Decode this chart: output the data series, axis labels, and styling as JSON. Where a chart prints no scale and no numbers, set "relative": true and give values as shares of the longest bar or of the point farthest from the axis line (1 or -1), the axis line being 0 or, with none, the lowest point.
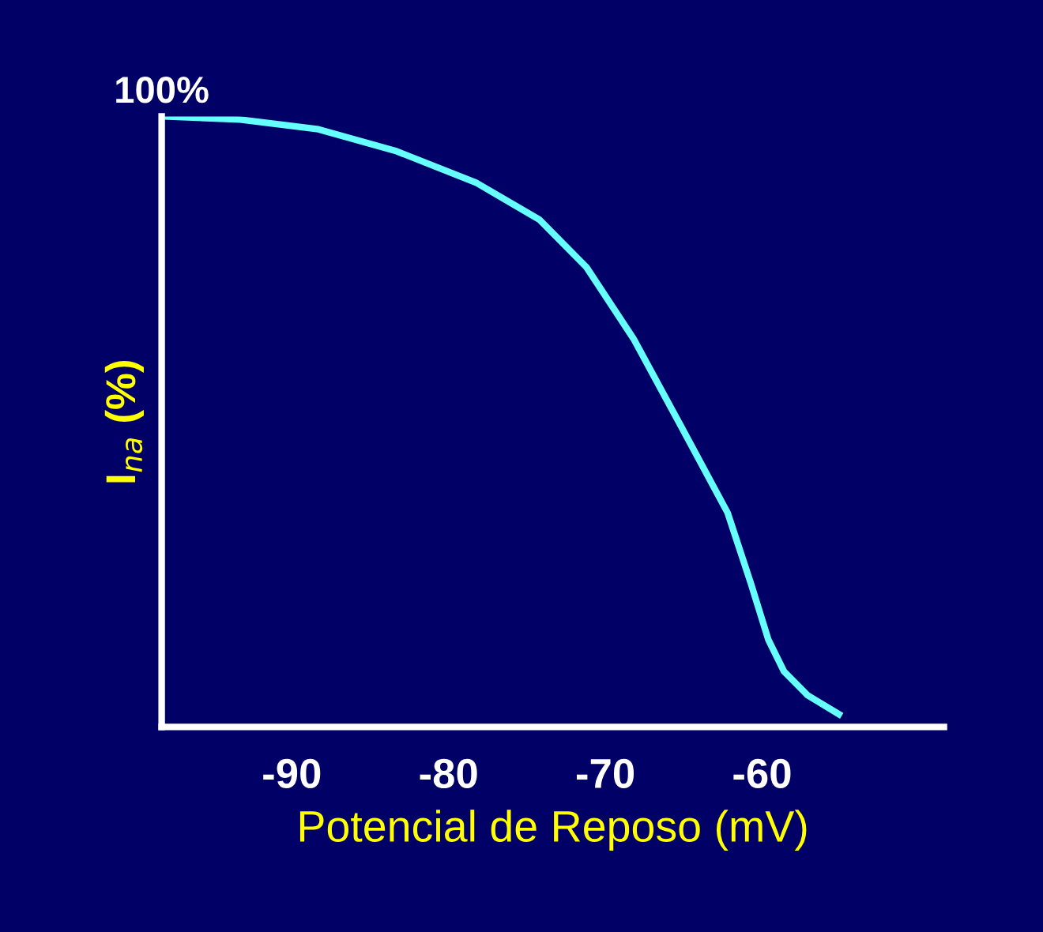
{
  "chart_data": {
    "type": "line",
    "relative": true,
    "xlabel": "Potencial de Reposo (mV)",
    "ylabel": "I$_{na}$ (%)",
    "annotations": [
      "100%"
    ],
    "xlim": [
      -98.3,
      -48.4
    ],
    "xticks": [
      -90,
      -80,
      -70,
      -60
    ],
    "marker": "none",
    "line_style": "solid",
    "series": [
      {
        "color": "#66ffff",
        "x": [
          -98.0,
          -93.3,
          -88.3,
          -83.3,
          -78.2,
          -74.2,
          -71.2,
          -68.2,
          -65.2,
          -62.2,
          -60.7,
          -59.6,
          -58.6,
          -57.1,
          -55.1
        ],
        "values": [
          1.0,
          0.995,
          0.979,
          0.943,
          0.891,
          0.831,
          0.753,
          0.636,
          0.494,
          0.351,
          0.234,
          0.143,
          0.091,
          0.052,
          0.021
        ]
      }
    ]
  }
}
